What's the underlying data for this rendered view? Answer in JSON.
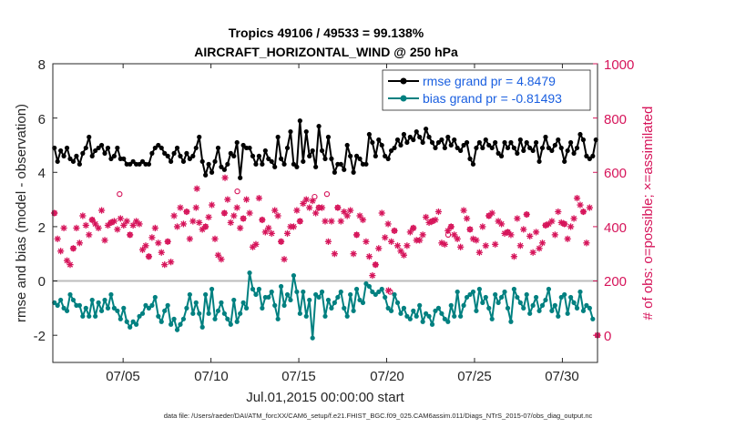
{
  "chart_data": {
    "type": "line",
    "title_line1": "Tropics 49106 / 49533 = 99.138%",
    "title_line2": "AIRCRAFT_HORIZONTAL_WIND @ 250 hPa",
    "xlabel": "Jul.01,2015 00:00:00 start",
    "ylabel_left": "rmse and bias (model - observation)",
    "ylabel_right": "# of obs: o=possible; ×=assimilated",
    "x_range_days": [
      0.0,
      31.0
    ],
    "x_ticks": [
      {
        "day": 4.0,
        "label": "07/05"
      },
      {
        "day": 9.0,
        "label": "07/10"
      },
      {
        "day": 14.0,
        "label": "07/15"
      },
      {
        "day": 19.0,
        "label": "07/20"
      },
      {
        "day": 24.0,
        "label": "07/25"
      },
      {
        "day": 29.0,
        "label": "07/30"
      }
    ],
    "y_left": {
      "min": -3,
      "max": 8,
      "ticks": [
        "-2",
        "0",
        "2",
        "4",
        "6",
        "8"
      ]
    },
    "y_right": {
      "min": -100,
      "max": 1000,
      "ticks": [
        "0",
        "200",
        "400",
        "600",
        "800",
        "1000"
      ]
    },
    "colors": {
      "rmse": "#000000",
      "bias": "#008080",
      "obs": "#d6145a",
      "zero_line": "#bcbcbc",
      "legend_text": "#1a5fe0"
    },
    "series": [
      {
        "name": "rmse grand pr = 4.8479",
        "axis": "left",
        "values": [
          4.9,
          4.4,
          4.8,
          4.6,
          4.9,
          4.5,
          4.4,
          4.6,
          4.3,
          4.7,
          4.9,
          5.3,
          4.6,
          4.8,
          4.9,
          5.0,
          4.7,
          4.9,
          4.5,
          4.6,
          4.9,
          4.5,
          4.5,
          4.3,
          4.3,
          4.4,
          4.3,
          4.3,
          4.4,
          4.3,
          4.3,
          4.7,
          4.9,
          5.0,
          4.9,
          4.7,
          4.6,
          4.4,
          4.7,
          4.9,
          4.6,
          4.4,
          4.7,
          4.5,
          4.6,
          4.9,
          5.3,
          4.4,
          3.9,
          4.3,
          4.0,
          4.4,
          4.9,
          4.2,
          4.1,
          4.3,
          4.7,
          4.6,
          5.1,
          3.8,
          5.0,
          4.9,
          4.9,
          4.6,
          4.3,
          4.6,
          4.3,
          4.8,
          4.5,
          4.4,
          4.2,
          5.3,
          4.5,
          4.3,
          4.9,
          5.5,
          4.3,
          4.2,
          5.9,
          4.4,
          5.5,
          4.6,
          4.8,
          4.2,
          5.7,
          4.8,
          4.5,
          5.3,
          4.5,
          4.0,
          4.3,
          4.3,
          4.1,
          5.0,
          4.6,
          4.0,
          4.6,
          4.5,
          4.3,
          4.3,
          5.4,
          5.1,
          4.6,
          5.2,
          5.0,
          4.6,
          4.5,
          4.8,
          4.9,
          5.2,
          5.0,
          5.4,
          5.1,
          5.3,
          5.2,
          5.5,
          5.3,
          5.1,
          5.6,
          5.3,
          5.1,
          4.9,
          5.1,
          5.2,
          4.9,
          5.3,
          5.0,
          5.2,
          4.9,
          4.8,
          5.0,
          5.1,
          4.5,
          4.3,
          4.9,
          5.1,
          4.9,
          5.2,
          5.0,
          4.9,
          5.1,
          4.7,
          4.6,
          5.1,
          4.9,
          5.1,
          4.9,
          4.7,
          5.2,
          4.8,
          5.1,
          4.9,
          4.8,
          5.1,
          4.4,
          4.9,
          5.3,
          4.9,
          4.8,
          5.0,
          5.2,
          4.9,
          4.4,
          4.8,
          5.1,
          4.7,
          4.9,
          5.4,
          5.2,
          4.6,
          4.5,
          4.6,
          5.2
        ]
      },
      {
        "name": "bias grand pr = -0.81493",
        "axis": "left",
        "values": [
          -0.8,
          -0.9,
          -0.7,
          -1.0,
          -1.1,
          -0.5,
          -0.7,
          -0.9,
          -0.9,
          -1.3,
          -1.0,
          -1.3,
          -0.7,
          -1.3,
          -0.8,
          -1.1,
          -0.7,
          -1.0,
          -0.5,
          -1.0,
          -1.1,
          -1.4,
          -1.0,
          -1.5,
          -1.7,
          -1.5,
          -1.6,
          -1.3,
          -1.2,
          -0.9,
          -1.0,
          -0.9,
          -0.6,
          -1.3,
          -1.5,
          -1.1,
          -0.9,
          -1.6,
          -1.4,
          -1.8,
          -1.6,
          -1.4,
          -1.0,
          -0.5,
          -1.2,
          -0.8,
          -1.2,
          -1.7,
          -0.5,
          -1.2,
          -0.3,
          -1.4,
          -1.1,
          -0.8,
          -1.2,
          -1.4,
          -1.6,
          -0.7,
          -1.5,
          -1.2,
          -0.8,
          -1.0,
          0.3,
          -0.3,
          -0.5,
          -0.3,
          -1.0,
          -0.6,
          -0.6,
          -0.4,
          -0.9,
          -1.4,
          -0.2,
          -0.9,
          -0.5,
          -0.7,
          0.2,
          -0.4,
          -1.2,
          -0.4,
          -1.3,
          -0.7,
          -2.1,
          -0.5,
          -0.6,
          -0.4,
          -1.3,
          -0.7,
          -1.0,
          -0.8,
          -0.6,
          -0.4,
          -1.0,
          -1.3,
          -0.5,
          -1.1,
          -0.3,
          -0.7,
          -0.8,
          -0.1,
          -0.2,
          -0.4,
          -0.5,
          -0.4,
          -0.3,
          -0.6,
          -1.0,
          -1.1,
          -0.5,
          -0.8,
          -1.2,
          -1.0,
          -1.3,
          -1.4,
          -1.1,
          -1.3,
          -0.9,
          -1.5,
          -1.2,
          -1.3,
          -1.6,
          -1.1,
          -1.0,
          -1.2,
          -1.4,
          -1.5,
          -0.9,
          -1.3,
          -0.4,
          -1.3,
          -0.9,
          -0.6,
          -0.5,
          -0.4,
          -1.1,
          -0.3,
          -0.8,
          -0.6,
          -1.0,
          -1.4,
          -0.5,
          -0.8,
          -0.6,
          -0.4,
          -1.0,
          -1.5,
          -0.3,
          -0.6,
          -0.8,
          -1.0,
          -0.5,
          -1.2,
          -0.9,
          -0.6,
          -1.1,
          -0.9,
          -0.7,
          -0.3,
          -1.1,
          -0.9,
          -1.3,
          -0.6,
          -0.5,
          -1.2,
          -0.6,
          -0.8,
          -1.0,
          -0.4,
          -1.1,
          -0.9,
          -1.0,
          -1.4
        ]
      },
      {
        "name": "obs assimilated",
        "axis": "right",
        "marker": "asterisk",
        "values": [
          450,
          355,
          310,
          395,
          275,
          260,
          320,
          395,
          340,
          440,
          405,
          370,
          425,
          410,
          395,
          460,
          350,
          405,
          415,
          420,
          390,
          430,
          405,
          420,
          370,
          405,
          420,
          410,
          315,
          330,
          290,
          360,
          395,
          340,
          305,
          260,
          345,
          270,
          440,
          400,
          470,
          410,
          455,
          355,
          420,
          470,
          415,
          390,
          400,
          435,
          480,
          355,
          295,
          280,
          450,
          500,
          415,
          440,
          470,
          395,
          430,
          500,
          450,
          325,
          335,
          505,
          425,
          380,
          395,
          375,
          460,
          440,
          345,
          280,
          375,
          400,
          400,
          460,
          420,
          485,
          500,
          470,
          495,
          450,
          470,
          470,
          420,
          345,
          420,
          300,
          470,
          420,
          455,
          440,
          460,
          300,
          370,
          440,
          425,
          345,
          290,
          220,
          260,
          320,
          450,
          360,
          410,
          345,
          385,
          330,
          310,
          295,
          330,
          380,
          395,
          350,
          350,
          370,
          435,
          415,
          420,
          425,
          455,
          340,
          335,
          385,
          400,
          370,
          355,
          325,
          460,
          430,
          390,
          355,
          350,
          305,
          400,
          330,
          440,
          450,
          335,
          420,
          410,
          375,
          380,
          370,
          290,
          430,
          330,
          390,
          445,
          365,
          305,
          380,
          320,
          340,
          405,
          410,
          420,
          370,
          455,
          415,
          410,
          355,
          400,
          430,
          505,
          480,
          455,
          340,
          470
        ]
      },
      {
        "name": "obs possible",
        "axis": "right",
        "marker": "circle",
        "values": [
          450,
          355,
          310,
          395,
          275,
          260,
          320,
          395,
          340,
          440,
          405,
          370,
          425,
          410,
          395,
          460,
          350,
          405,
          415,
          420,
          390,
          430,
          405,
          420,
          370,
          405,
          420,
          410,
          315,
          330,
          290,
          360,
          395,
          340,
          305,
          260,
          345,
          270,
          440,
          400,
          470,
          410,
          455,
          355,
          420,
          470,
          415,
          390,
          400,
          435,
          480,
          355,
          295,
          280,
          450,
          500,
          415,
          440,
          470,
          395,
          430,
          500,
          450,
          325,
          335,
          505,
          425,
          380,
          395,
          375,
          460,
          440,
          345,
          280,
          375,
          400,
          400,
          460,
          420,
          485,
          500,
          470,
          495,
          450,
          470,
          470,
          420,
          345,
          420,
          300,
          470,
          420,
          455,
          440,
          460,
          300,
          370,
          440,
          425,
          345,
          290,
          220,
          260,
          320,
          450,
          360,
          410,
          345,
          385,
          330,
          310,
          295,
          330,
          380,
          395,
          350,
          350,
          370,
          435,
          415,
          420,
          425,
          455,
          340,
          335,
          385,
          400,
          370,
          355,
          325,
          460,
          430,
          390,
          355,
          350,
          305,
          400,
          330,
          440,
          450,
          335,
          420,
          410,
          375,
          380,
          370,
          290,
          430,
          330,
          390,
          445,
          365,
          305,
          380,
          320,
          340,
          405,
          410,
          420,
          370,
          455,
          415,
          410,
          355,
          400,
          430,
          505,
          480,
          455,
          340,
          470
        ]
      }
    ],
    "extra_obs_points": [
      {
        "day": 9.8,
        "value": 580,
        "marker": "asterisk"
      },
      {
        "day": 8.2,
        "value": 540,
        "marker": "asterisk"
      },
      {
        "day": 3.8,
        "value": 520,
        "marker": "circle"
      },
      {
        "day": 10.5,
        "value": 530,
        "marker": "circle"
      },
      {
        "day": 14.9,
        "value": 510,
        "marker": "circle"
      },
      {
        "day": 15.6,
        "value": 520,
        "marker": "circle"
      },
      {
        "day": 22.5,
        "value": 370,
        "marker": "circle"
      },
      {
        "day": 19.2,
        "value": 160,
        "marker": "circle"
      },
      {
        "day": 19.1,
        "value": 165,
        "marker": "asterisk"
      },
      {
        "day": 31.0,
        "value": 0,
        "marker": "asterisk"
      },
      {
        "day": 31.0,
        "value": 0,
        "marker": "circle"
      }
    ]
  },
  "legend": {
    "rmse_label": "rmse grand pr = 4.8479",
    "bias_label": "bias grand pr = -0.81493"
  },
  "footer": "data file: /Users/raeder/DAI/ATM_forcXX/CAM6_setup/f.e21.FHIST_BGC.f09_025.CAM6assim.011/Diags_NTrS_2015-07/obs_diag_output.nc"
}
